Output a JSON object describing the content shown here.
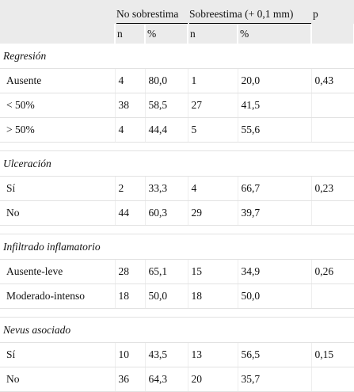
{
  "header": {
    "groups": [
      "No sobrestima",
      "Sobreestima (+ 0,1 mm)"
    ],
    "p": "p",
    "subheaders": [
      "n",
      "%",
      "n",
      "%"
    ]
  },
  "sections": [
    {
      "title": "Regresión",
      "rows": [
        [
          "Ausente",
          "4",
          "80,0",
          "1",
          "20,0",
          "0,43"
        ],
        [
          "< 50%",
          "38",
          "58,5",
          "27",
          "41,5"
        ],
        [
          "> 50%",
          "4",
          "44,4",
          "5",
          "55,6"
        ]
      ]
    },
    {
      "title": "Ulceración",
      "rows": [
        [
          "Sí",
          "2",
          "33,3",
          "4",
          "66,7",
          "0,23"
        ],
        [
          "No",
          "44",
          "60,3",
          "29",
          "39,7"
        ]
      ]
    },
    {
      "title": "Infiltrado inflamatorio",
      "rows": [
        [
          "Ausente-leve",
          "28",
          "65,1",
          "15",
          "34,9",
          "0,26"
        ],
        [
          "Moderado-intenso",
          "18",
          "50,0",
          "18",
          "50,0"
        ]
      ]
    },
    {
      "title": "Nevus asociado",
      "rows": [
        [
          "Sí",
          "10",
          "43,5",
          "13",
          "56,5",
          "0,15"
        ],
        [
          "No",
          "36",
          "64,3",
          "20",
          "35,7"
        ]
      ]
    }
  ]
}
